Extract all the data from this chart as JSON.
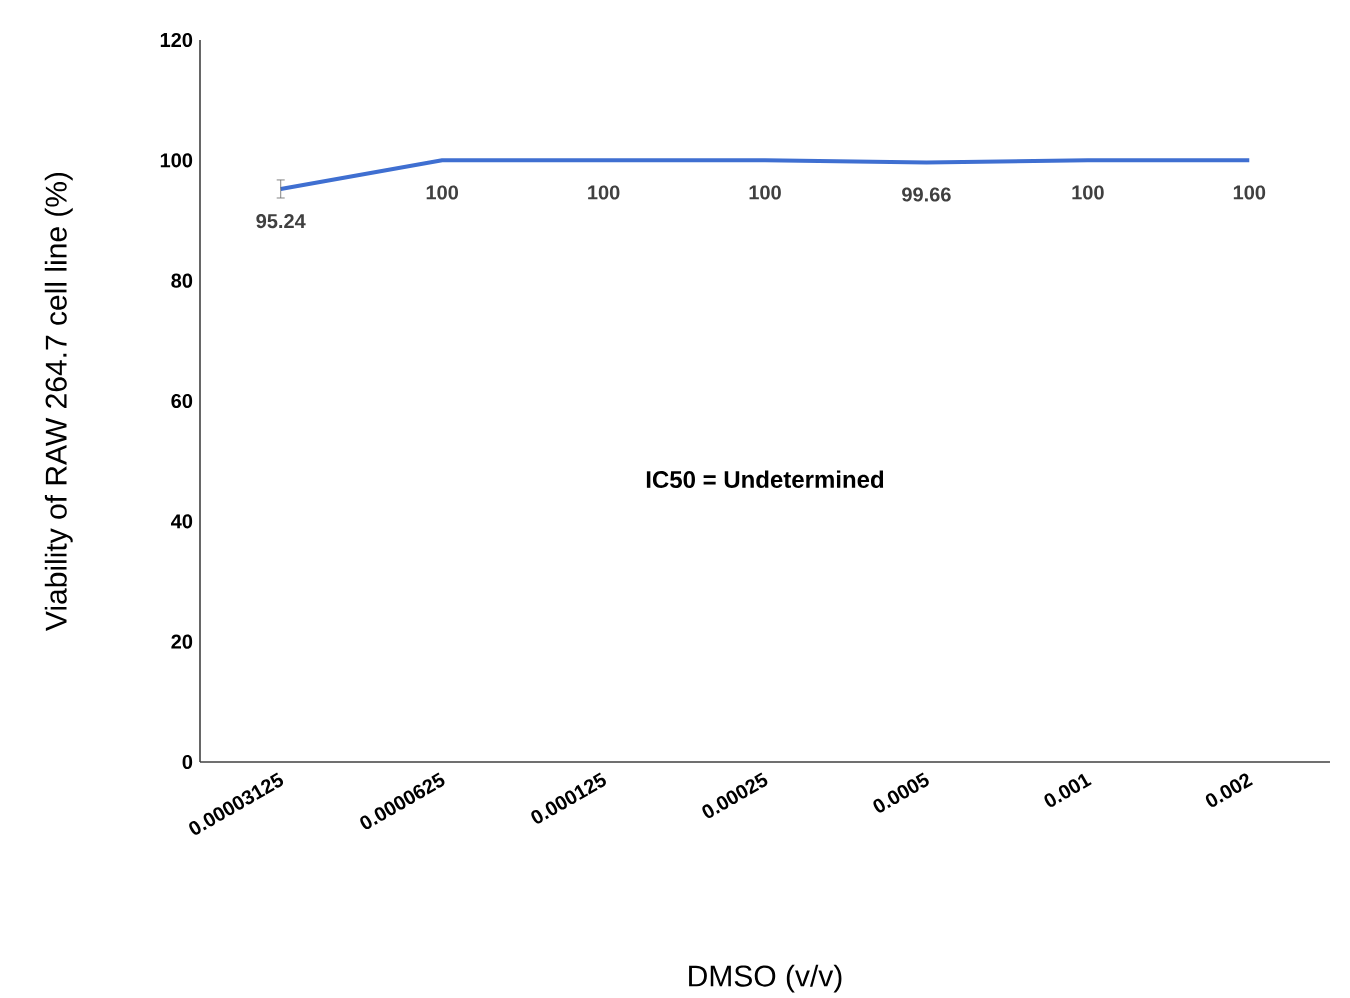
{
  "chart_data": {
    "type": "line",
    "xlabel": "DMSO (v/v)",
    "ylabel": "Viability of RAW 264.7 cell line (%)",
    "categories": [
      "0.00003125",
      "0.0000625",
      "0.000125",
      "0.00025",
      "0.0005",
      "0.001",
      "0.002"
    ],
    "values": [
      95.24,
      100,
      100,
      100,
      99.66,
      100,
      100
    ],
    "errors": [
      1.5,
      null,
      null,
      null,
      null,
      null,
      null
    ],
    "color": "#3f6fd1",
    "ylim": [
      0,
      120
    ],
    "yticks": [
      0,
      20,
      40,
      60,
      80,
      100,
      120
    ],
    "grid": false,
    "marker": "none",
    "line_style": "solid",
    "data_labels": true,
    "annotations": [
      "IC50 = Undetermined"
    ]
  }
}
